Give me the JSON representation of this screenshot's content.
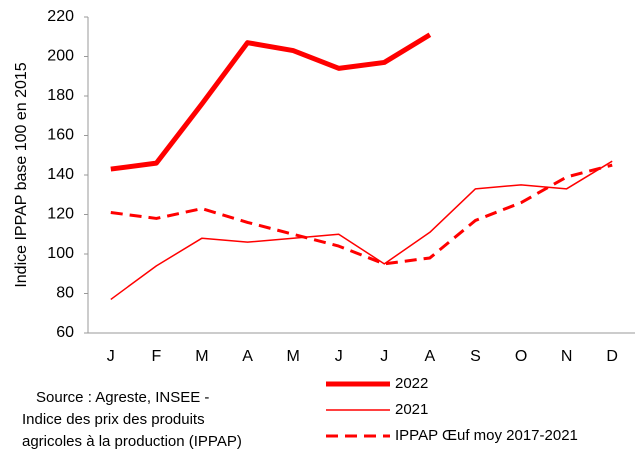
{
  "chart_data": {
    "type": "line",
    "y_label": "Indice IPPAP  base 100 en 2015",
    "source": [
      "Source : Agreste, INSEE -",
      "Indice  des prix des produits",
      "agricoles à la production (IPPAP)"
    ],
    "categories": [
      "J",
      "F",
      "M",
      "A",
      "M",
      "J",
      "J",
      "A",
      "S",
      "O",
      "N",
      "D"
    ],
    "series": [
      {
        "name": "2022",
        "color": "#ff0000",
        "line_width": 5,
        "dashed": false,
        "values": [
          143,
          146,
          176,
          207,
          203,
          194,
          197,
          211,
          null,
          null,
          null,
          null
        ]
      },
      {
        "name": "2021",
        "color": "#ff0000",
        "line_width": 1.5,
        "dashed": false,
        "values": [
          77,
          94,
          108,
          106,
          108,
          110,
          95,
          111,
          133,
          135,
          133,
          147
        ]
      },
      {
        "name": "IPPAP Œuf moy 2017-2021",
        "color": "#ff0000",
        "line_width": 3,
        "dashed": true,
        "values": [
          121,
          118,
          123,
          116,
          110,
          104,
          95,
          98,
          117,
          126,
          139,
          145
        ]
      }
    ],
    "ylim": [
      60,
      220
    ],
    "yticks": [
      60,
      80,
      100,
      120,
      140,
      160,
      180,
      200,
      220
    ],
    "grid": false
  }
}
